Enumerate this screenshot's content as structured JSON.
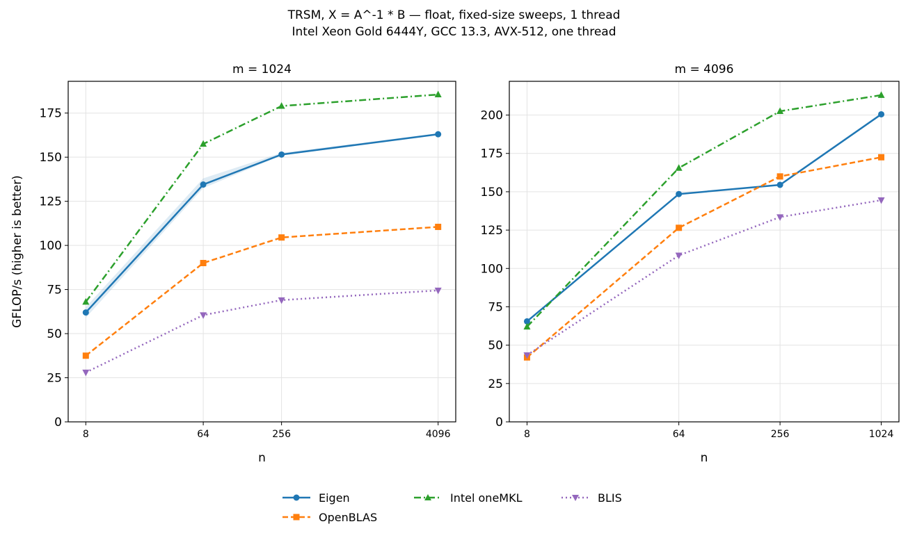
{
  "figure": {
    "title_line1": "TRSM, X = A^-1 * B — float, fixed-size sweeps, 1 thread",
    "title_line2": "Intel Xeon Gold 6444Y, GCC 13.3, AVX-512, one thread"
  },
  "colors": {
    "Eigen": "#1f77b4",
    "OpenBLAS": "#ff7f0e",
    "Intel oneMKL": "#2ca02c",
    "BLIS": "#9467bd"
  },
  "legend": {
    "items": [
      "Eigen",
      "OpenBLAS",
      "Intel oneMKL",
      "BLIS"
    ]
  },
  "chart_data": [
    {
      "type": "line",
      "title": "m = 1024",
      "xlabel": "n",
      "ylabel": "GFLOP/s (higher is better)",
      "x_scale": "log2",
      "x": [
        8,
        64,
        256,
        4096
      ],
      "x_tick_labels": [
        "8",
        "64",
        "256",
        "4096"
      ],
      "ylim": [
        0,
        193
      ],
      "y_ticks": [
        0,
        25,
        50,
        75,
        100,
        125,
        150,
        175
      ],
      "grid": true,
      "series": [
        {
          "name": "Eigen",
          "values": [
            62,
            134.5,
            151.5,
            163
          ],
          "band_low": [
            59,
            132.5,
            151,
            162.5
          ],
          "band_high": [
            65,
            138,
            152.5,
            163.5
          ]
        },
        {
          "name": "OpenBLAS",
          "values": [
            37.5,
            90,
            104.5,
            110.5
          ]
        },
        {
          "name": "Intel oneMKL",
          "values": [
            68,
            157.5,
            179,
            185.5
          ]
        },
        {
          "name": "BLIS",
          "values": [
            28,
            60.5,
            69,
            74.5
          ]
        }
      ]
    },
    {
      "type": "line",
      "title": "m = 4096",
      "xlabel": "n",
      "ylabel": "",
      "x_scale": "log2",
      "x": [
        8,
        64,
        256,
        1024
      ],
      "x_tick_labels": [
        "8",
        "64",
        "256",
        "1024"
      ],
      "ylim": [
        0,
        222
      ],
      "y_ticks": [
        0,
        25,
        50,
        75,
        100,
        125,
        150,
        175,
        200
      ],
      "grid": true,
      "series": [
        {
          "name": "Eigen",
          "values": [
            65.5,
            148.5,
            154.5,
            200.5
          ]
        },
        {
          "name": "OpenBLAS",
          "values": [
            42,
            126.5,
            160,
            172.5
          ]
        },
        {
          "name": "Intel oneMKL",
          "values": [
            62,
            165.5,
            202.5,
            213
          ]
        },
        {
          "name": "BLIS",
          "values": [
            43.5,
            108.5,
            133.5,
            144.5
          ]
        }
      ]
    }
  ]
}
